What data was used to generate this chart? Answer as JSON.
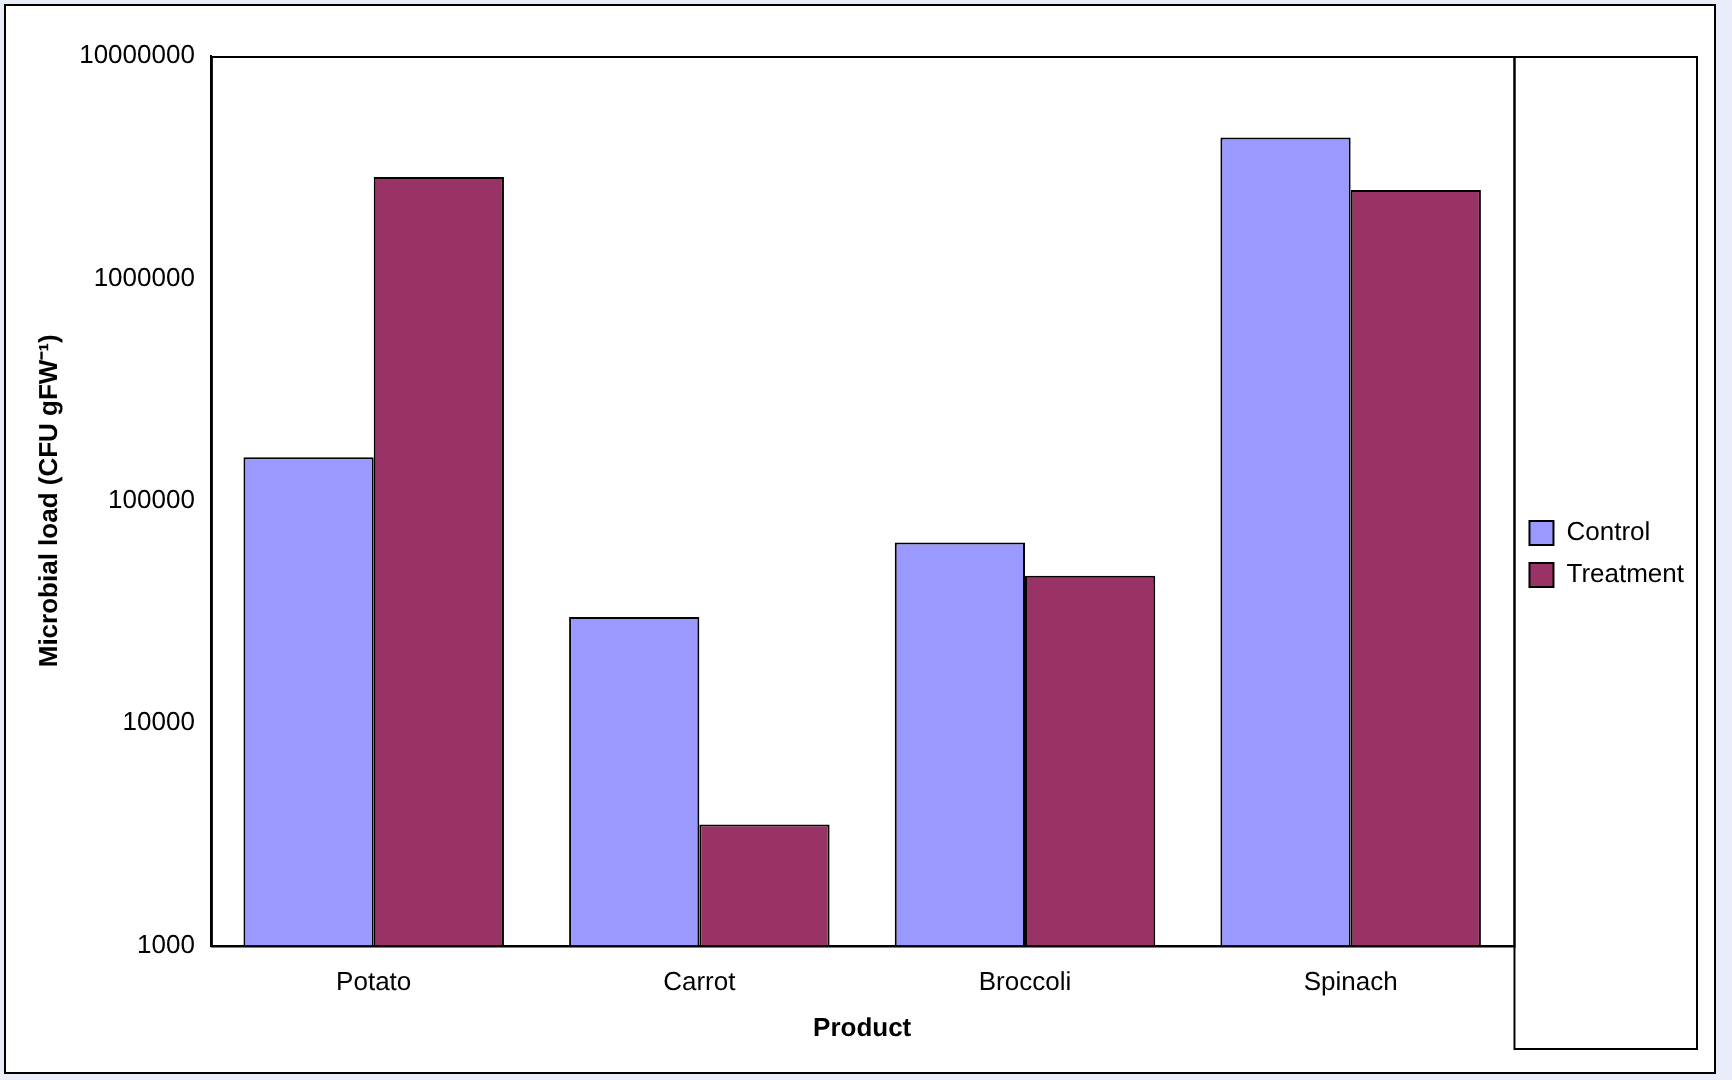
{
  "chart_data": {
    "type": "bar",
    "xlabel": "Product",
    "ylabel": "Microbial load (CFU gFW⁻¹)",
    "categories": [
      "Potato",
      "Carrot",
      "Broccoli",
      "Spinach"
    ],
    "series": [
      {
        "name": "Control",
        "color": "#9999ff",
        "values": [
          157000,
          30000,
          65000,
          4300000
        ]
      },
      {
        "name": "Treatment",
        "color": "#993366",
        "values": [
          2860000,
          3500,
          46000,
          2500000
        ]
      }
    ],
    "log": "y",
    "ylim": [
      1000,
      10000000
    ],
    "yticks": [
      1000,
      10000,
      100000,
      1000000,
      10000000
    ],
    "grid": false,
    "legend": "right"
  }
}
